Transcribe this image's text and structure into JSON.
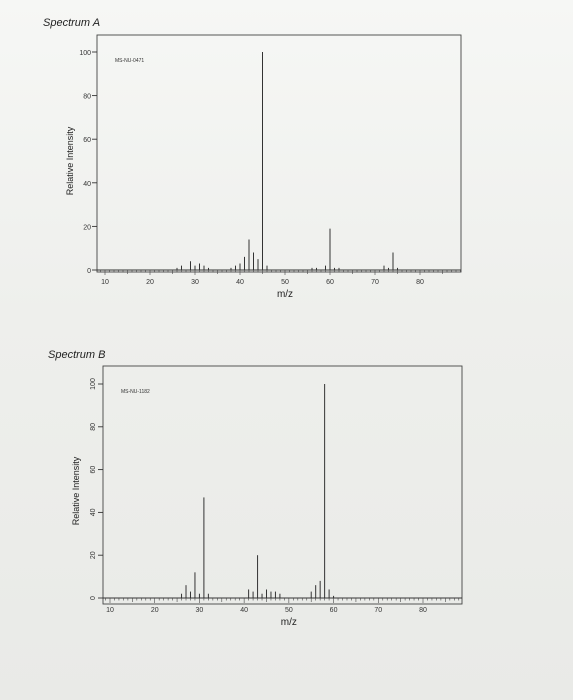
{
  "chart_data": [
    {
      "type": "bar",
      "panel_title": "Spectrum A",
      "spectrum_id": "MS-NU-0471",
      "xlabel": "m/z",
      "ylabel": "Relative Intensity",
      "xlim": [
        7,
        90
      ],
      "ylim": [
        0,
        100
      ],
      "xticks": [
        10,
        20,
        30,
        40,
        50,
        60,
        70,
        80
      ],
      "yticks": [
        0,
        20,
        40,
        60,
        80,
        100
      ],
      "peaks": [
        {
          "x": 26,
          "y": 1
        },
        {
          "x": 27,
          "y": 2
        },
        {
          "x": 29,
          "y": 4
        },
        {
          "x": 30,
          "y": 2
        },
        {
          "x": 31,
          "y": 3
        },
        {
          "x": 32,
          "y": 2
        },
        {
          "x": 33,
          "y": 1
        },
        {
          "x": 38,
          "y": 1
        },
        {
          "x": 39,
          "y": 2
        },
        {
          "x": 40,
          "y": 3
        },
        {
          "x": 41,
          "y": 6
        },
        {
          "x": 42,
          "y": 14
        },
        {
          "x": 43,
          "y": 8
        },
        {
          "x": 44,
          "y": 5
        },
        {
          "x": 45,
          "y": 100
        },
        {
          "x": 46,
          "y": 2
        },
        {
          "x": 61,
          "y": 1
        },
        {
          "x": 62,
          "y": 1
        },
        {
          "x": 56,
          "y": 1
        },
        {
          "x": 57,
          "y": 1
        },
        {
          "x": 59,
          "y": 2
        },
        {
          "x": 60,
          "y": 19
        },
        {
          "x": 72,
          "y": 2
        },
        {
          "x": 73,
          "y": 1
        },
        {
          "x": 74,
          "y": 8
        },
        {
          "x": 75,
          "y": 1
        }
      ]
    },
    {
      "type": "bar",
      "panel_title": "Spectrum B",
      "spectrum_id": "MS-NU-1182",
      "xlabel": "m/z",
      "ylabel": "Relative Intensity",
      "xlim": [
        7,
        90
      ],
      "ylim": [
        0,
        100
      ],
      "xticks": [
        10,
        20,
        30,
        40,
        50,
        60,
        70,
        80
      ],
      "yticks": [
        0,
        20,
        40,
        60,
        80,
        100
      ],
      "peaks": [
        {
          "x": 26,
          "y": 2
        },
        {
          "x": 27,
          "y": 6
        },
        {
          "x": 28,
          "y": 3
        },
        {
          "x": 29,
          "y": 12
        },
        {
          "x": 30,
          "y": 2
        },
        {
          "x": 31,
          "y": 47
        },
        {
          "x": 32,
          "y": 2
        },
        {
          "x": 41,
          "y": 4
        },
        {
          "x": 42,
          "y": 3
        },
        {
          "x": 43,
          "y": 20
        },
        {
          "x": 44,
          "y": 2
        },
        {
          "x": 45,
          "y": 4
        },
        {
          "x": 46,
          "y": 3
        },
        {
          "x": 47,
          "y": 3
        },
        {
          "x": 48,
          "y": 2
        },
        {
          "x": 55,
          "y": 3
        },
        {
          "x": 56,
          "y": 6
        },
        {
          "x": 57,
          "y": 8
        },
        {
          "x": 58,
          "y": 100
        },
        {
          "x": 59,
          "y": 4
        },
        {
          "x": 60,
          "y": 1
        }
      ]
    }
  ]
}
